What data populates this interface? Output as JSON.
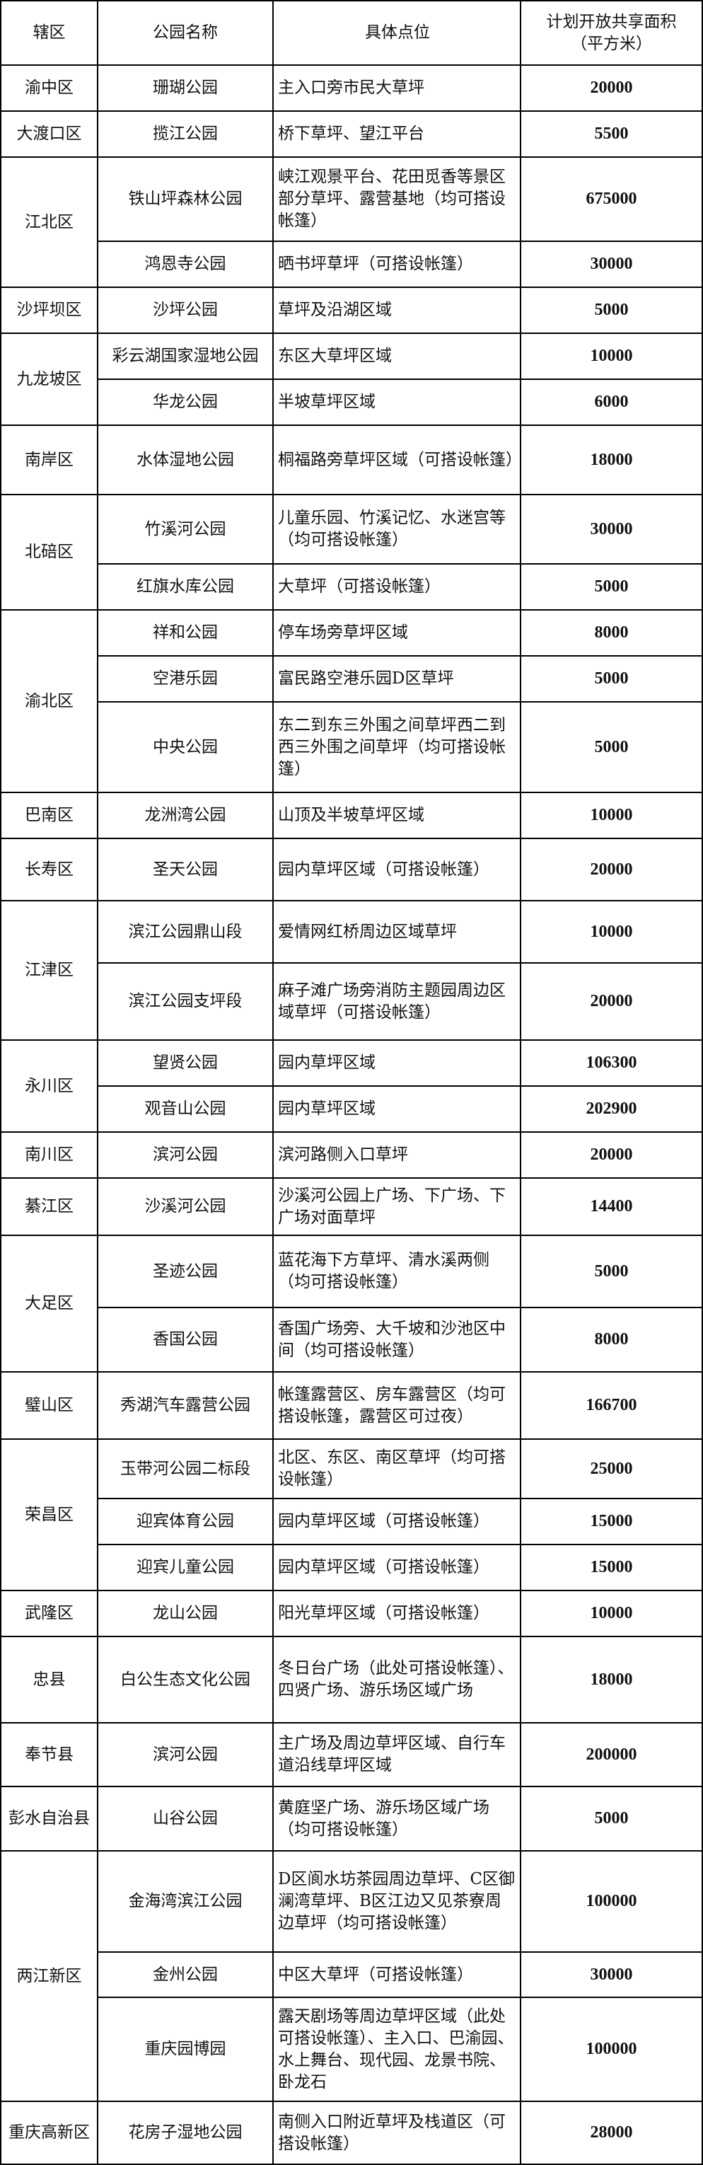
{
  "header": {
    "district": "辖区",
    "park": "公园名称",
    "location": "具体点位",
    "area_line1": "计划开放共享面积",
    "area_line2": "（平方米）"
  },
  "districts": [
    {
      "name": "渝中区",
      "parks": [
        {
          "name": "珊瑚公园",
          "location": "主入口旁市民大草坪",
          "area": "20000"
        }
      ]
    },
    {
      "name": "大渡口区",
      "parks": [
        {
          "name": "揽江公园",
          "location": "桥下草坪、望江平台",
          "area": "5500"
        }
      ]
    },
    {
      "name": "江北区",
      "parks": [
        {
          "name": "铁山坪森林公园",
          "location": "峡江观景平台、花田觅香等景区部分草坪、露营基地（均可搭设帐篷）",
          "area": "675000"
        },
        {
          "name": "鸿恩寺公园",
          "location": "晒书坪草坪（可搭设帐篷）",
          "area": "30000"
        }
      ]
    },
    {
      "name": "沙坪坝区",
      "parks": [
        {
          "name": "沙坪公园",
          "location": "草坪及沿湖区域",
          "area": "5000"
        }
      ]
    },
    {
      "name": "九龙坡区",
      "parks": [
        {
          "name": "彩云湖国家湿地公园",
          "location": "东区大草坪区域",
          "area": "10000"
        },
        {
          "name": "华龙公园",
          "location": "半坡草坪区域",
          "area": "6000"
        }
      ]
    },
    {
      "name": "南岸区",
      "parks": [
        {
          "name": "水体湿地公园",
          "location": "桐福路旁草坪区域（可搭设帐篷）",
          "area": "18000"
        }
      ]
    },
    {
      "name": "北碚区",
      "parks": [
        {
          "name": "竹溪河公园",
          "location": "儿童乐园、竹溪记忆、水迷宫等（均可搭设帐篷）",
          "area": "30000"
        },
        {
          "name": "红旗水库公园",
          "location": "大草坪（可搭设帐篷）",
          "area": "5000"
        }
      ]
    },
    {
      "name": "渝北区",
      "parks": [
        {
          "name": "祥和公园",
          "location": "停车场旁草坪区域",
          "area": "8000"
        },
        {
          "name": "空港乐园",
          "location": "富民路空港乐园D区草坪",
          "area": "5000"
        },
        {
          "name": "中央公园",
          "location": "东二到东三外围之间草坪西二到西三外围之间草坪（均可搭设帐篷）",
          "area": "5000"
        }
      ]
    },
    {
      "name": "巴南区",
      "parks": [
        {
          "name": "龙洲湾公园",
          "location": "山顶及半坡草坪区域",
          "area": "10000"
        }
      ]
    },
    {
      "name": "长寿区",
      "parks": [
        {
          "name": "圣天公园",
          "location": "园内草坪区域（可搭设帐篷）",
          "area": "20000"
        }
      ]
    },
    {
      "name": "江津区",
      "parks": [
        {
          "name": "滨江公园鼎山段",
          "location": "爱情网红桥周边区域草坪",
          "area": "10000"
        },
        {
          "name": "滨江公园支坪段",
          "location": "麻子滩广场旁消防主题园周边区域草坪（可搭设帐篷）",
          "area": "20000"
        }
      ]
    },
    {
      "name": "永川区",
      "parks": [
        {
          "name": "望贤公园",
          "location": "园内草坪区域",
          "area": "106300"
        },
        {
          "name": "观音山公园",
          "location": "园内草坪区域",
          "area": "202900"
        }
      ]
    },
    {
      "name": "南川区",
      "parks": [
        {
          "name": "滨河公园",
          "location": "滨河路侧入口草坪",
          "area": "20000"
        }
      ]
    },
    {
      "name": "綦江区",
      "parks": [
        {
          "name": "沙溪河公园",
          "location": "沙溪河公园上广场、下广场、下广场对面草坪",
          "area": "14400"
        }
      ]
    },
    {
      "name": "大足区",
      "parks": [
        {
          "name": "圣迹公园",
          "location": "蓝花海下方草坪、清水溪两侧（均可搭设帐篷）",
          "area": "5000"
        },
        {
          "name": "香国公园",
          "location": "香国广场旁、大千坡和沙池区中间（均可搭设帐篷）",
          "area": "8000"
        }
      ]
    },
    {
      "name": "璧山区",
      "parks": [
        {
          "name": "秀湖汽车露营公园",
          "location": "帐篷露营区、房车露营区（均可搭设帐篷，露营区可过夜）",
          "area": "166700"
        }
      ]
    },
    {
      "name": "荣昌区",
      "parks": [
        {
          "name": "玉带河公园二标段",
          "location": "北区、东区、南区草坪（均可搭设帐篷）",
          "area": "25000"
        },
        {
          "name": "迎宾体育公园",
          "location": "园内草坪区域（可搭设帐篷）",
          "area": "15000"
        },
        {
          "name": "迎宾儿童公园",
          "location": "园内草坪区域（可搭设帐篷）",
          "area": "15000"
        }
      ]
    },
    {
      "name": "武隆区",
      "parks": [
        {
          "name": "龙山公园",
          "location": "阳光草坪区域（可搭设帐篷）",
          "area": "10000"
        }
      ]
    },
    {
      "name": "忠县",
      "parks": [
        {
          "name": "白公生态文化公园",
          "location": "冬日台广场（此处可搭设帐篷）、四贤广场、游乐场区域广场",
          "area": "18000"
        }
      ]
    },
    {
      "name": "奉节县",
      "parks": [
        {
          "name": "滨河公园",
          "location": "主广场及周边草坪区域、自行车道沿线草坪区域",
          "area": "200000"
        }
      ]
    },
    {
      "name": "彭水自治县",
      "parks": [
        {
          "name": "山谷公园",
          "location": "黄庭坚广场、游乐场区域广场（均可搭设帐篷）",
          "area": "5000"
        }
      ]
    },
    {
      "name": "两江新区",
      "parks": [
        {
          "name": "金海湾滨江公园",
          "location": "D区阆水坊茶园周边草坪、C区御澜湾草坪、B区江边又见茶寮周边草坪（均可搭设帐篷）",
          "area": "100000"
        },
        {
          "name": "金州公园",
          "location": "中区大草坪（可搭设帐篷）",
          "area": "30000"
        },
        {
          "name": "重庆园博园",
          "location": "露天剧场等周边草坪区域（此处可搭设帐篷）、主入口、巴渝园、水上舞台、现代园、龙景书院、卧龙石",
          "area": "100000"
        }
      ]
    },
    {
      "name": "重庆高新区",
      "parks": [
        {
          "name": "花房子湿地公园",
          "location": "南侧入口附近草坪及栈道区（可搭设帐篷）",
          "area": "28000"
        }
      ]
    }
  ]
}
